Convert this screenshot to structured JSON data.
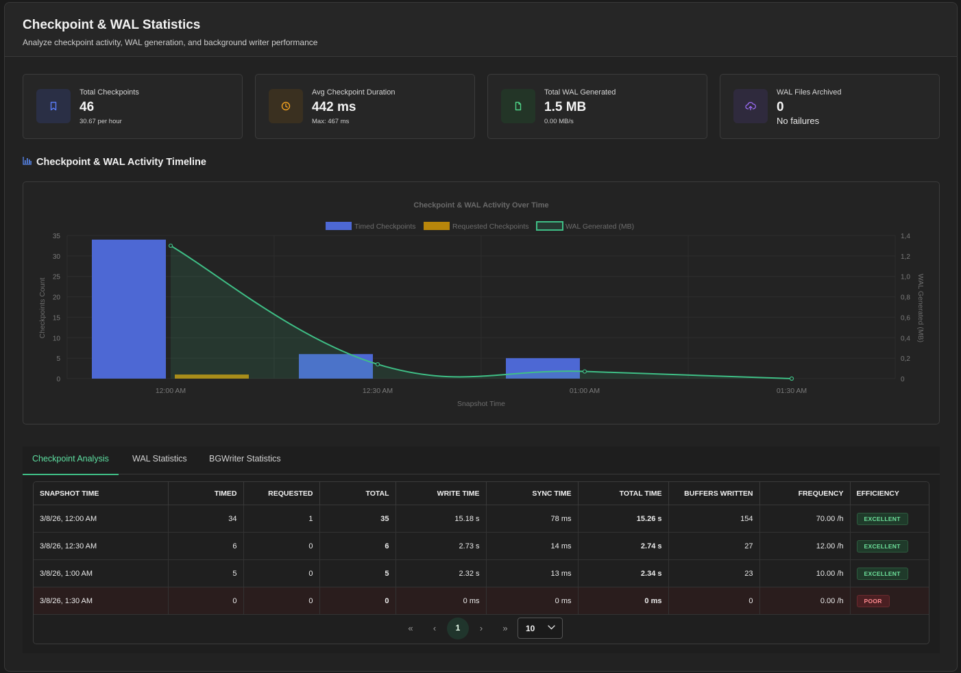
{
  "header": {
    "title": "Checkpoint & WAL Statistics",
    "subtitle": "Analyze checkpoint activity, WAL generation, and background writer performance"
  },
  "cards": [
    {
      "label": "Total Checkpoints",
      "value": "46",
      "sub": "30.67 per hour",
      "icon": "bookmark-icon",
      "color": "#5b7cf7"
    },
    {
      "label": "Avg Checkpoint Duration",
      "value": "442 ms",
      "sub": "Max: 467 ms",
      "icon": "clock-icon",
      "color": "#f0a020"
    },
    {
      "label": "Total WAL Generated",
      "value": "1.5 MB",
      "sub": "0.00 MB/s",
      "icon": "file-icon",
      "color": "#4fd488"
    },
    {
      "label": "WAL Files Archived",
      "value": "0",
      "sub": "No failures",
      "icon": "cloud-upload-icon",
      "color": "#9b6cf5"
    }
  ],
  "section": {
    "title": "Checkpoint & WAL Activity Timeline"
  },
  "chart_data": {
    "type": "bar",
    "title": "Checkpoint & WAL Activity Over Time",
    "categories": [
      "12:00 AM",
      "12:30 AM",
      "01:00 AM",
      "01:30 AM"
    ],
    "series": [
      {
        "name": "Timed Checkpoints",
        "type": "bar",
        "axis": "left",
        "color": "#4d68d4",
        "values": [
          34,
          6,
          5,
          0
        ]
      },
      {
        "name": "Requested Checkpoints",
        "type": "bar",
        "axis": "left",
        "color": "#b8860b",
        "values": [
          1,
          0,
          0,
          0
        ]
      },
      {
        "name": "WAL Generated (MB)",
        "type": "area",
        "axis": "right",
        "color": "#3fbf86",
        "values": [
          1.3,
          0.14,
          0.07,
          0.0
        ]
      }
    ],
    "xlabel": "Snapshot Time",
    "ylabel": "Checkpoints Count",
    "y2label": "WAL Generated (MB)",
    "ylim": [
      0,
      35
    ],
    "y2lim": [
      0,
      1.4
    ],
    "yticks": [
      "0",
      "5",
      "10",
      "15",
      "20",
      "25",
      "30",
      "35"
    ],
    "y2ticks": [
      "0",
      "0,2",
      "0,4",
      "0,6",
      "0,8",
      "1,0",
      "1,2",
      "1,4"
    ],
    "legend": "top",
    "grid": true
  },
  "tabs": [
    {
      "label": "Checkpoint Analysis",
      "active": true
    },
    {
      "label": "WAL Statistics",
      "active": false
    },
    {
      "label": "BGWriter Statistics",
      "active": false
    }
  ],
  "table": {
    "headers": [
      "SNAPSHOT TIME",
      "TIMED",
      "REQUESTED",
      "TOTAL",
      "WRITE TIME",
      "SYNC TIME",
      "TOTAL TIME",
      "BUFFERS WRITTEN",
      "FREQUENCY",
      "EFFICIENCY"
    ],
    "rows": [
      [
        "3/8/26, 12:00 AM",
        "34",
        "1",
        "35",
        "15.18 s",
        "78 ms",
        "15.26 s",
        "154",
        "70.00 /h",
        "EXCELLENT"
      ],
      [
        "3/8/26, 12:30 AM",
        "6",
        "0",
        "6",
        "2.73 s",
        "14 ms",
        "2.74 s",
        "27",
        "12.00 /h",
        "EXCELLENT"
      ],
      [
        "3/8/26, 1:00 AM",
        "5",
        "0",
        "5",
        "2.32 s",
        "13 ms",
        "2.34 s",
        "23",
        "10.00 /h",
        "EXCELLENT"
      ],
      [
        "3/8/26, 1:30 AM",
        "0",
        "0",
        "0",
        "0 ms",
        "0 ms",
        "0 ms",
        "0",
        "0.00 /h",
        "POOR"
      ]
    ]
  },
  "pagination": {
    "first": "«",
    "prev": "‹",
    "current": "1",
    "next": "›",
    "last": "»",
    "page_size": "10"
  }
}
